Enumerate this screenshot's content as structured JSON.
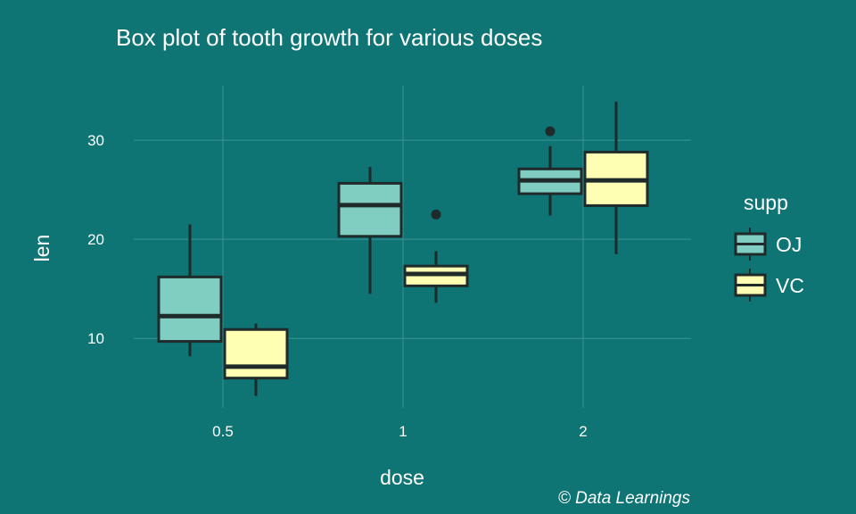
{
  "chart_data": {
    "type": "boxplot",
    "title": "Box plot of tooth growth for various doses",
    "xlabel": "dose",
    "ylabel": "len",
    "categories": [
      "0.5",
      "1",
      "2"
    ],
    "ylim": [
      3,
      35.5
    ],
    "yticks": [
      10,
      20,
      30
    ],
    "grid": true,
    "legend": {
      "title": "supp",
      "position": "right"
    },
    "caption": "© Data Learnings",
    "series": [
      {
        "name": "OJ",
        "color": "#80cdc1",
        "boxes": [
          {
            "min": 8.2,
            "q1": 9.7,
            "median": 12.25,
            "q3": 16.2,
            "max": 21.5,
            "outliers": []
          },
          {
            "min": 14.5,
            "q1": 20.3,
            "median": 23.45,
            "q3": 25.65,
            "max": 27.3,
            "outliers": []
          },
          {
            "min": 22.4,
            "q1": 24.6,
            "median": 25.95,
            "q3": 27.1,
            "max": 29.4,
            "outliers": [
              30.9
            ]
          }
        ]
      },
      {
        "name": "VC",
        "color": "#ffffb3",
        "boxes": [
          {
            "min": 4.2,
            "q1": 6.0,
            "median": 7.15,
            "q3": 10.9,
            "max": 11.5,
            "outliers": []
          },
          {
            "min": 13.6,
            "q1": 15.3,
            "median": 16.5,
            "q3": 17.3,
            "max": 18.8,
            "outliers": [
              22.5
            ]
          },
          {
            "min": 18.5,
            "q1": 23.4,
            "median": 25.95,
            "q3": 28.8,
            "max": 33.9,
            "outliers": []
          }
        ]
      }
    ]
  },
  "style": {
    "background": "#0f7474",
    "grid_color": "#3a9494",
    "outline_color": "#1f2a2a"
  }
}
